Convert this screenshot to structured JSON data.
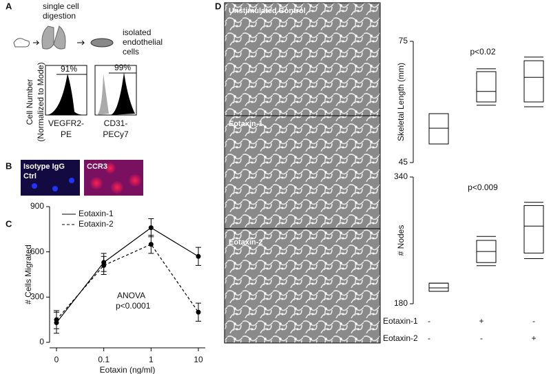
{
  "panel_a": {
    "label": "A",
    "step1": [
      "single cell",
      "digestion"
    ],
    "step2": [
      "isolated",
      "endothelial",
      "cells"
    ],
    "y_label": [
      "Cell Number",
      "(Normalized to Mode)"
    ],
    "histograms": [
      {
        "percent": "91%",
        "x_label": [
          "VEGFR2-",
          "PE"
        ]
      },
      {
        "percent": "99%",
        "x_label": [
          "CD31-",
          "PECy7"
        ]
      }
    ]
  },
  "panel_b": {
    "label": "B",
    "images": [
      [
        "Isotype IgG",
        "Ctrl"
      ],
      [
        "CCR3"
      ]
    ]
  },
  "panel_c": {
    "label": "C"
  },
  "panel_d": {
    "label": "D",
    "images": [
      "Unstimulated Control",
      "Eotaxin-1",
      "Eotaxin-2"
    ],
    "row_labels": [
      "Eotaxin-1",
      "Eotaxin-2"
    ],
    "signs": [
      [
        "-",
        "+",
        "-"
      ],
      [
        "-",
        "-",
        "+"
      ]
    ]
  },
  "chart_data": [
    {
      "type": "line",
      "x_label": "Eotaxin (ng/ml)",
      "y_label": "# Cells Migrated",
      "categories": [
        "0",
        "0.1",
        "1",
        "10"
      ],
      "ylim": [
        0,
        900
      ],
      "yticks": [
        0,
        300,
        600,
        900
      ],
      "annotation": [
        "ANOVA",
        "p<0.0001"
      ],
      "series": [
        {
          "name": "Eotaxin-1",
          "color": "#000000",
          "dash": "solid",
          "values": [
            130,
            530,
            760,
            570
          ],
          "errors": [
            70,
            60,
            60,
            60
          ]
        },
        {
          "name": "Eotaxin-2",
          "color": "#000000",
          "dash": "dashed",
          "values": [
            150,
            510,
            650,
            200
          ],
          "errors": [
            60,
            60,
            60,
            60
          ]
        }
      ]
    },
    {
      "type": "box",
      "y_label": "Skeletal Length (mm)",
      "ylim": [
        45,
        75
      ],
      "yticks": [
        45,
        75
      ],
      "annotation": "p<0.02",
      "boxes": [
        {
          "whislo": 49.6,
          "q1": 49.6,
          "med": 53.5,
          "q3": 57.1,
          "whishi": 57.1
        },
        {
          "whislo": 59.2,
          "q1": 60.0,
          "med": 62.6,
          "q3": 67.5,
          "whishi": 68.2
        },
        {
          "whislo": 58.8,
          "q1": 60.0,
          "med": 66.1,
          "q3": 70.2,
          "whishi": 71.1
        }
      ]
    },
    {
      "type": "box",
      "y_label": "# Nodes",
      "ylim": [
        180,
        340
      ],
      "yticks": [
        180,
        340
      ],
      "annotation": "p<0.009",
      "boxes": [
        {
          "whislo": 195.7,
          "q1": 195.7,
          "med": 200,
          "q3": 206,
          "whishi": 206
        },
        {
          "whislo": 228,
          "q1": 232,
          "med": 246,
          "q3": 260,
          "whishi": 265
        },
        {
          "whislo": 237,
          "q1": 244,
          "med": 278,
          "q3": 304,
          "whishi": 308
        }
      ]
    }
  ]
}
